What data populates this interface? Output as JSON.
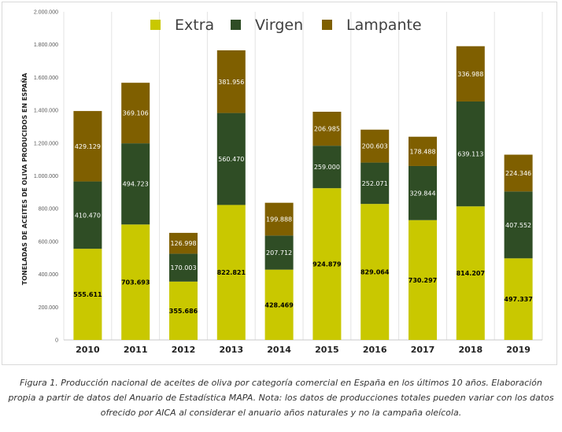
{
  "chart_data": {
    "type": "bar",
    "stacked": true,
    "categories": [
      "2010",
      "2011",
      "2012",
      "2013",
      "2014",
      "2015",
      "2016",
      "2017",
      "2018",
      "2019"
    ],
    "series": [
      {
        "name": "Extra",
        "color": "#c9c800",
        "label_color": "#000000",
        "labels": [
          "555.611",
          "703.693",
          "355.686",
          "822.821",
          "428.469",
          "924.879",
          "829.064",
          "730.297",
          "814.207",
          "497.337"
        ],
        "values": [
          555611,
          703693,
          355686,
          822821,
          428469,
          924879,
          829064,
          730297,
          814207,
          497337
        ]
      },
      {
        "name": "Virgen",
        "color": "#2f4d25",
        "label_color": "#ffffff",
        "labels": [
          "410.470",
          "494.723",
          "170.003",
          "560.470",
          "207.712",
          "259.000",
          "252.071",
          "329.844",
          "639.113",
          "407.552"
        ],
        "values": [
          410470,
          494723,
          170003,
          560470,
          207712,
          259000,
          252071,
          329844,
          639113,
          407552
        ]
      },
      {
        "name": "Lampante",
        "color": "#7f5f00",
        "label_color": "#ffffff",
        "labels": [
          "429.129",
          "369.106",
          "126.998",
          "381.956",
          "199.888",
          "206.985",
          "200.603",
          "178.488",
          "336.988",
          "224.346"
        ],
        "values": [
          429129,
          369106,
          126998,
          381956,
          199888,
          206985,
          200603,
          178488,
          336988,
          224346
        ]
      }
    ],
    "ylabel": "TONELADAS DE ACEITES DE OLIVA PRODUCIDOS EN ESPAÑA",
    "xlabel": "",
    "ylim": [
      0,
      2000000
    ],
    "ytick_labels": [
      "0",
      "200.000",
      "400.000",
      "600.000",
      "800.000",
      "1.000.000",
      "1.200.000",
      "1.400.000",
      "1.600.000",
      "1.800.000",
      "2.000.000"
    ],
    "grid": "vertical",
    "legend_position": "top"
  },
  "caption": "Figura 1. Producción nacional de aceites de oliva por categoría comercial en España en los últimos 10 años. Elaboración propia a partir de datos del Anuario de Estadística MAPA. Nota: los datos de producciones totales pueden variar con los datos ofrecido por AICA al considerar el anuario años naturales y no la campaña oleícola."
}
